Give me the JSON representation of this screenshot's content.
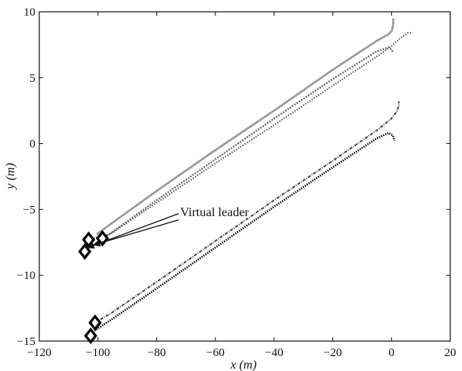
{
  "chart_data": {
    "type": "line",
    "title": "",
    "xlabel": "x (m)",
    "ylabel": "y (m)",
    "xlim": [
      -120,
      20
    ],
    "ylim": [
      -15,
      10
    ],
    "xticks": [
      -120,
      -100,
      -80,
      -60,
      -40,
      -20,
      0,
      20
    ],
    "yticks": [
      10,
      5,
      0,
      -5,
      -10,
      -15
    ],
    "grid": false,
    "legend": "none",
    "series": [
      {
        "color": "#9a9a9a",
        "x": [
          -100.5,
          -95,
          -80,
          -60,
          -40,
          -20,
          -5,
          -1,
          0.2,
          0.6,
          0.6
        ],
        "y": [
          -6.9,
          -6.0,
          -3.6,
          -0.5,
          2.5,
          5.6,
          7.8,
          8.3,
          8.6,
          9.1,
          9.5
        ]
      },
      {
        "color": "#666666",
        "x": [
          -98.5,
          -95,
          -80,
          -60,
          -40,
          -20,
          -5,
          -1,
          0.2,
          0.4
        ],
        "y": [
          -7.2,
          -6.7,
          -4.3,
          -1.2,
          1.9,
          4.9,
          7.0,
          7.3,
          7.1,
          6.9
        ]
      },
      {
        "color": "#555555",
        "x": [
          -103.2,
          -96,
          -80,
          -60,
          -40,
          -20,
          -5,
          0,
          3,
          5.5,
          7
        ],
        "y": [
          -7.3,
          -6.9,
          -4.5,
          -1.5,
          1.4,
          4.4,
          6.6,
          7.4,
          8.0,
          8.4,
          8.4
        ]
      },
      {
        "color": "#444444",
        "x": [
          -101,
          -95,
          -80,
          -60,
          -40,
          -20,
          -5,
          0,
          2,
          2.5,
          2.5
        ],
        "y": [
          -13.6,
          -12.8,
          -10.5,
          -7.4,
          -4.3,
          -1.3,
          1.0,
          1.9,
          2.5,
          2.9,
          3.2
        ]
      },
      {
        "color": "#111111",
        "x": [
          -102.5,
          -95,
          -80,
          -60,
          -40,
          -20,
          -5,
          -1,
          0.5,
          1
        ],
        "y": [
          -14.4,
          -13.3,
          -11.0,
          -7.9,
          -4.8,
          -1.8,
          0.4,
          0.8,
          0.6,
          0.2
        ]
      }
    ],
    "markers": [
      {
        "x": -104.5,
        "y": -8.2
      },
      {
        "x": -103.2,
        "y": -7.3
      },
      {
        "x": -98.5,
        "y": -7.2
      },
      {
        "x": -101,
        "y": -13.6
      },
      {
        "x": -102.5,
        "y": -14.6
      }
    ],
    "annotation": {
      "text": "Virtual leader",
      "x": -72,
      "y": -5.2,
      "arrow_targets": [
        {
          "x": -103.5,
          "y": -7.9
        },
        {
          "x": -101.5,
          "y": -7.7
        }
      ]
    }
  }
}
